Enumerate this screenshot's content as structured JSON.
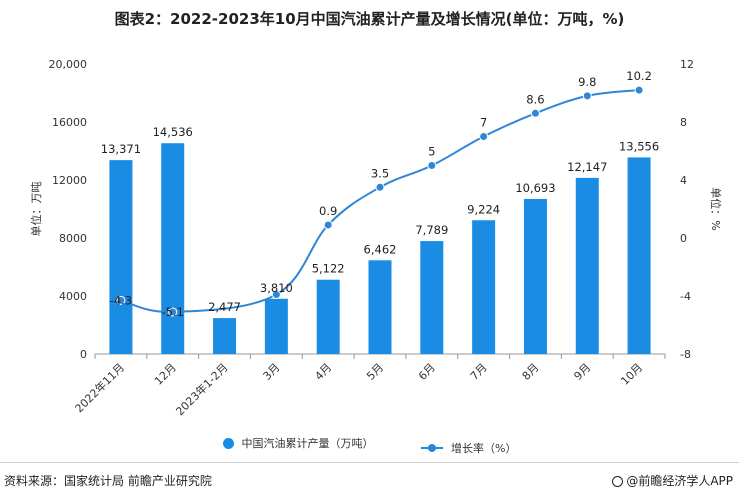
{
  "title": "图表2：2022-2023年10月中国汽油累计产量及增长情况(单位：万吨，%)",
  "chart_data": {
    "type": "bar",
    "categories": [
      "2022年11月",
      "12月",
      "2023年1-2月",
      "3月",
      "4月",
      "5月",
      "6月",
      "7月",
      "8月",
      "9月",
      "10月"
    ],
    "bar_series": {
      "name": "中国汽油累计产量（万吨）",
      "values": [
        13371,
        14536,
        2477,
        3810,
        5122,
        6462,
        7789,
        9224,
        10693,
        12147,
        13556
      ],
      "labels": [
        "13,371",
        "14,536",
        "2,477",
        "3,810",
        "5,122",
        "6,462",
        "7,789",
        "9,224",
        "10,693",
        "12,147",
        "13,556"
      ]
    },
    "line_series": {
      "name": "增长率（%）",
      "values": [
        -4.3,
        -5.1,
        null,
        -3.9,
        0.9,
        3.5,
        5,
        7,
        8.6,
        9.8,
        10.2
      ],
      "labels": [
        "-4.3",
        "-5.1",
        "",
        "",
        "0.9",
        "3.5",
        "5",
        "7",
        "8.6",
        "9.8",
        "10.2"
      ]
    },
    "left_axis": {
      "label": "单位：万吨",
      "min": 0,
      "max": 20000,
      "ticks": [
        0,
        4000,
        8000,
        12000,
        16000,
        20000
      ],
      "tick_labels": [
        "0",
        "4000",
        "8000",
        "12000",
        "16000",
        "20,000"
      ]
    },
    "right_axis": {
      "label": "单位：%",
      "min": -8,
      "max": 12,
      "ticks": [
        -8,
        -4,
        0,
        4,
        8,
        12
      ],
      "tick_labels": [
        "-8",
        "-4",
        "0",
        "4",
        "8",
        "12"
      ]
    },
    "grid": false,
    "legend_position": "bottom"
  },
  "colors": {
    "bar": "#1b8ce3",
    "line": "#2f86d6",
    "axis": "#999999"
  },
  "legend": {
    "bar_label": "中国汽油累计产量（万吨）",
    "line_label": "增长率（%）"
  },
  "footer": {
    "source": "资料来源：国家统计局 前瞻产业研究院",
    "brand": "@前瞻经济学人APP"
  },
  "icons": {
    "brand_icon": "circle-logo-icon"
  }
}
